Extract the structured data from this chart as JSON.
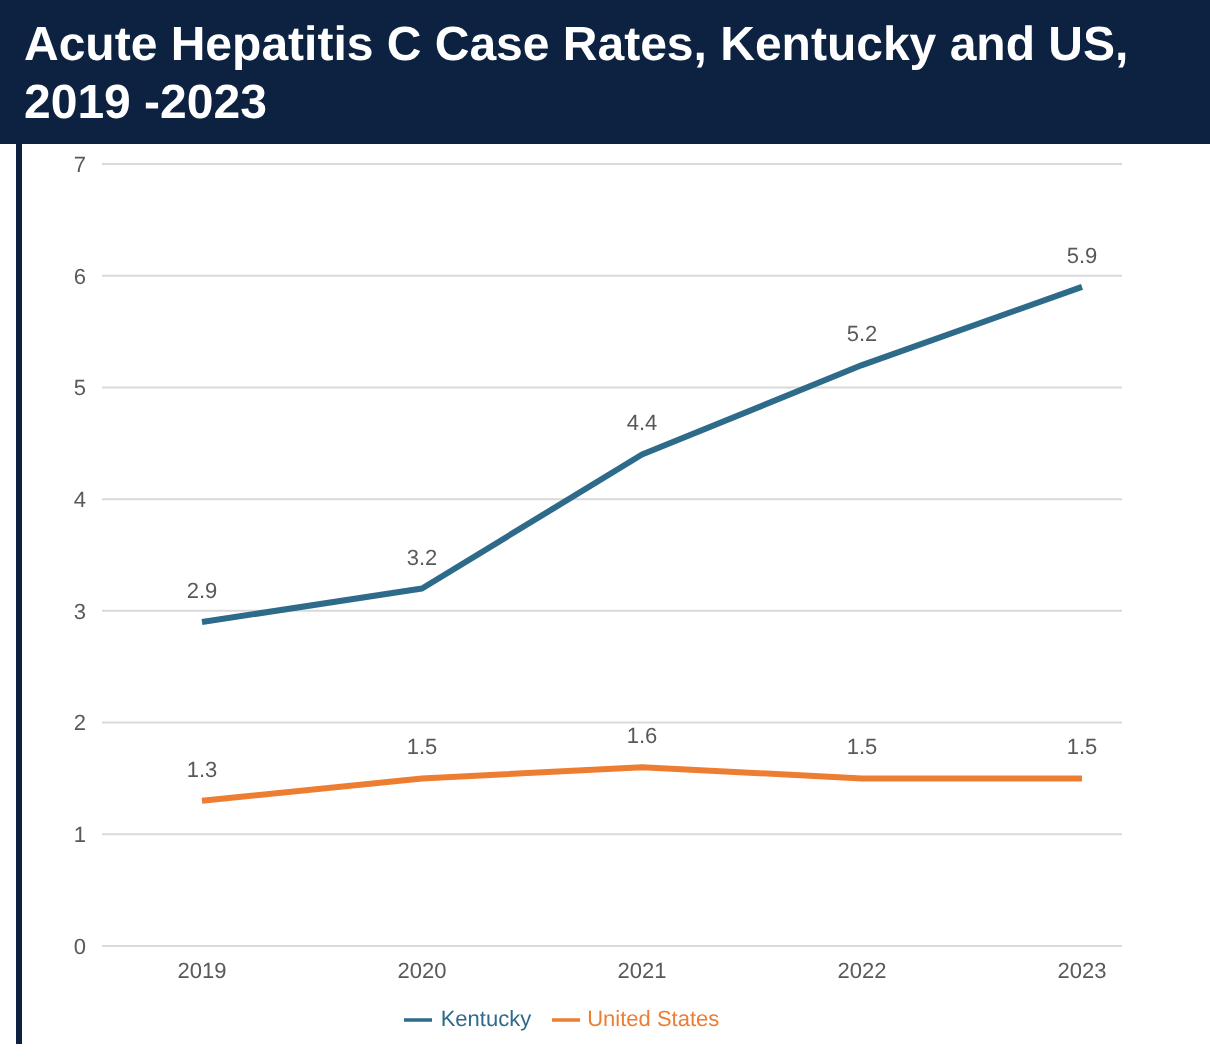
{
  "chart_data": {
    "type": "line",
    "title": "Acute Hepatitis C Case Rates, Kentucky and US, 2019 -2023",
    "categories": [
      "2019",
      "2020",
      "2021",
      "2022",
      "2023"
    ],
    "series": [
      {
        "name": "Kentucky",
        "color": "#2e6b8a",
        "values": [
          2.9,
          3.2,
          4.4,
          5.2,
          5.9
        ]
      },
      {
        "name": "United States",
        "color": "#ed7d31",
        "values": [
          1.3,
          1.5,
          1.6,
          1.5,
          1.5
        ]
      }
    ],
    "ylim": [
      0,
      7
    ],
    "yticks": [
      0,
      1,
      2,
      3,
      4,
      5,
      6,
      7
    ],
    "grid": "y",
    "legend": "bottom",
    "data_labels": true,
    "marker": "none",
    "line_style": "solid"
  }
}
